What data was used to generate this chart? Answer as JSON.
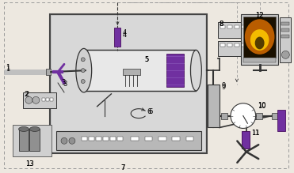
{
  "bg_color": "#ede8e0",
  "purple": "#7030a0",
  "dark_purple": "#4a1060",
  "gray": "#888888",
  "dark_gray": "#333333",
  "mid_gray": "#aaaaaa",
  "light_gray": "#cccccc",
  "lighter_gray": "#e0e0e0",
  "black": "#000000",
  "white": "#ffffff",
  "oven_face": "#c8c8c8",
  "oven_edge": "#444444",
  "orange_glow": "#cc6600",
  "yellow_glow": "#ffcc00",
  "monitor_bg": "#1a1000",
  "dashed_color": "#999999",
  "cyl_face": "#e8e8e8"
}
